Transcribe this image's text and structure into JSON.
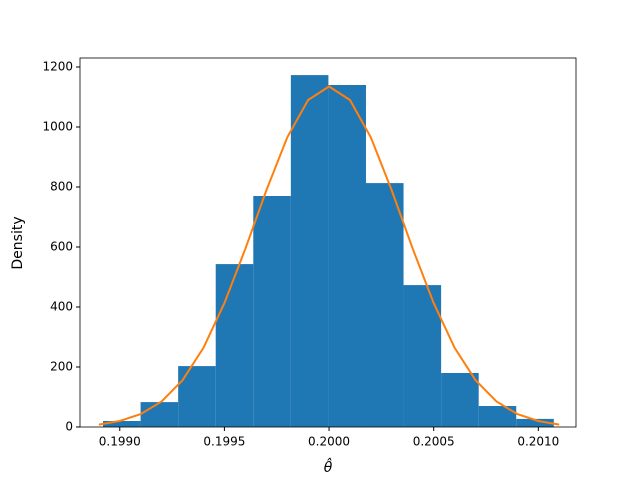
{
  "chart_data": {
    "type": "histogram",
    "xlabel": "θ̂",
    "ylabel": "Density",
    "bins": [
      0.19892,
      0.1990995,
      0.199279,
      0.1994585,
      0.199638,
      0.1998175,
      0.199997,
      0.2001765,
      0.200356,
      0.2005355,
      0.200715,
      0.2008945,
      0.201074
    ],
    "values": [
      20,
      83,
      203,
      543,
      770,
      1173,
      1140,
      813,
      473,
      180,
      70,
      27
    ],
    "color": "#1f77b4",
    "overlay": {
      "type": "line",
      "color": "#ff7f0e",
      "x": [
        0.1989,
        0.199,
        0.1991,
        0.1992,
        0.1993,
        0.1994,
        0.1995,
        0.1996,
        0.1997,
        0.1998,
        0.1999,
        0.2,
        0.2001,
        0.2002,
        0.2003,
        0.2004,
        0.2005,
        0.2006,
        0.2007,
        0.2008,
        0.2009,
        0.201,
        0.2011
      ],
      "values": [
        8,
        20,
        43,
        85,
        156,
        264,
        413,
        594,
        788,
        965,
        1090,
        1135,
        1090,
        965,
        788,
        594,
        413,
        264,
        156,
        85,
        43,
        20,
        8
      ]
    },
    "xlim": [
      0.19881,
      0.20118
    ],
    "ylim": [
      0,
      1230
    ],
    "xticks": [
      {
        "value": 0.199,
        "label": "0.1990"
      },
      {
        "value": 0.1995,
        "label": "0.1995"
      },
      {
        "value": 0.2,
        "label": "0.2000"
      },
      {
        "value": 0.2005,
        "label": "0.2005"
      },
      {
        "value": 0.201,
        "label": "0.2010"
      }
    ],
    "yticks": [
      0,
      200,
      400,
      600,
      800,
      1000,
      1200
    ]
  }
}
